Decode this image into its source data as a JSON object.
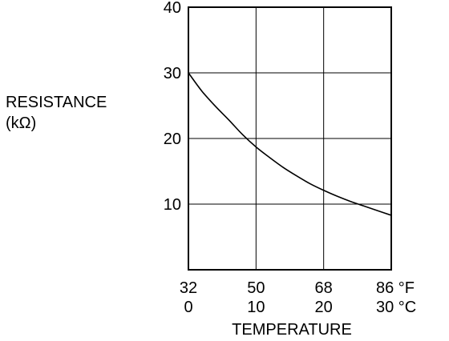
{
  "chart_data": {
    "type": "line",
    "ylabel_lines": [
      "RESISTANCE",
      "(kΩ)"
    ],
    "xlabel": "TEMPERATURE",
    "ylim": [
      0,
      40
    ],
    "yticks": [
      {
        "value": 10,
        "label": "10"
      },
      {
        "value": 20,
        "label": "20"
      },
      {
        "value": 30,
        "label": "30"
      },
      {
        "value": 40,
        "label": "40"
      }
    ],
    "xlim": [
      0,
      30
    ],
    "xticks": [
      {
        "value": 0,
        "f_label": "32",
        "c_label": "0"
      },
      {
        "value": 10,
        "f_label": "50",
        "c_label": "10"
      },
      {
        "value": 20,
        "f_label": "68",
        "c_label": "20"
      },
      {
        "value": 30,
        "f_label": "86 °F",
        "c_label": "30 °C"
      }
    ],
    "grid": true,
    "series": [
      {
        "x": [
          0,
          2,
          4,
          6,
          8,
          10,
          12,
          14,
          16,
          18,
          20,
          22,
          24,
          26,
          28,
          30
        ],
        "y": [
          30,
          27.2,
          24.9,
          22.8,
          20.6,
          18.7,
          17.1,
          15.6,
          14.3,
          13.1,
          12.1,
          11.2,
          10.4,
          9.7,
          9.0,
          8.3
        ]
      }
    ]
  }
}
